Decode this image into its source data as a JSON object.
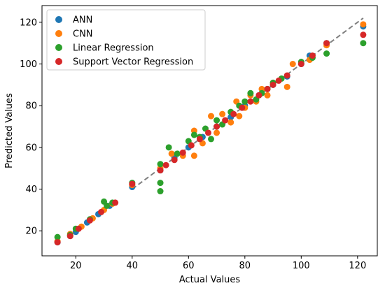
{
  "chart_data": {
    "type": "scatter",
    "title": "",
    "xlabel": "Actual Values",
    "ylabel": "Predicted Values",
    "xlim": [
      8,
      127
    ],
    "ylim": [
      8,
      128
    ],
    "x_ticks": [
      20,
      40,
      60,
      80,
      100,
      120
    ],
    "y_ticks": [
      20,
      40,
      60,
      80,
      100,
      120
    ],
    "grid": false,
    "legend_position": "top-left",
    "series": [
      {
        "name": "ANN",
        "color": "#1f77b4",
        "points": [
          [
            13.5,
            14.5
          ],
          [
            18,
            17.5
          ],
          [
            20,
            19.5
          ],
          [
            24,
            24
          ],
          [
            28,
            28
          ],
          [
            32,
            32
          ],
          [
            40,
            41
          ],
          [
            50,
            49
          ],
          [
            55,
            55
          ],
          [
            60,
            60
          ],
          [
            65,
            65
          ],
          [
            70,
            70
          ],
          [
            75,
            74.5
          ],
          [
            80,
            80
          ],
          [
            85,
            85
          ],
          [
            90,
            90
          ],
          [
            95,
            94
          ],
          [
            100,
            100
          ],
          [
            103,
            104
          ],
          [
            109,
            110
          ],
          [
            122,
            118
          ]
        ]
      },
      {
        "name": "CNN",
        "color": "#ff7f0e",
        "points": [
          [
            13.5,
            15
          ],
          [
            18,
            18.5
          ],
          [
            22,
            22
          ],
          [
            26,
            26
          ],
          [
            30,
            30
          ],
          [
            33,
            33
          ],
          [
            40,
            42
          ],
          [
            50,
            50
          ],
          [
            54,
            57
          ],
          [
            58,
            56
          ],
          [
            62,
            56
          ],
          [
            62,
            68
          ],
          [
            65,
            62
          ],
          [
            68,
            75
          ],
          [
            70,
            67
          ],
          [
            72,
            76
          ],
          [
            75,
            72
          ],
          [
            77,
            82
          ],
          [
            78,
            75
          ],
          [
            80,
            79
          ],
          [
            82,
            85
          ],
          [
            84,
            82
          ],
          [
            86,
            88
          ],
          [
            88,
            85
          ],
          [
            90,
            91
          ],
          [
            95,
            89
          ],
          [
            97,
            100
          ],
          [
            103,
            102
          ],
          [
            109,
            109
          ],
          [
            122,
            119
          ]
        ]
      },
      {
        "name": "Linear Regression",
        "color": "#2ca02c",
        "points": [
          [
            13.5,
            17
          ],
          [
            18,
            18
          ],
          [
            20,
            21
          ],
          [
            25,
            25.5
          ],
          [
            30,
            34
          ],
          [
            31,
            32
          ],
          [
            33,
            33.5
          ],
          [
            40,
            43
          ],
          [
            50,
            39
          ],
          [
            50,
            43
          ],
          [
            50,
            52
          ],
          [
            53,
            60
          ],
          [
            56,
            57
          ],
          [
            60,
            63
          ],
          [
            62,
            66
          ],
          [
            64,
            65
          ],
          [
            66,
            69
          ],
          [
            68,
            64
          ],
          [
            70,
            73
          ],
          [
            72,
            71
          ],
          [
            75,
            77
          ],
          [
            78,
            80
          ],
          [
            80,
            82
          ],
          [
            82,
            86
          ],
          [
            84,
            83
          ],
          [
            86,
            86
          ],
          [
            88,
            88
          ],
          [
            90,
            91
          ],
          [
            93,
            93
          ],
          [
            100,
            101
          ],
          [
            104,
            103
          ],
          [
            109,
            105
          ],
          [
            122,
            110
          ]
        ]
      },
      {
        "name": "Support Vector Regression",
        "color": "#d62728",
        "points": [
          [
            13.5,
            14.5
          ],
          [
            18,
            17.5
          ],
          [
            21,
            21
          ],
          [
            25,
            25
          ],
          [
            29,
            29
          ],
          [
            34,
            33.5
          ],
          [
            40,
            42.5
          ],
          [
            50,
            49
          ],
          [
            52,
            51.5
          ],
          [
            55,
            54
          ],
          [
            58,
            57.5
          ],
          [
            61,
            61
          ],
          [
            64,
            64
          ],
          [
            67,
            67
          ],
          [
            70,
            70
          ],
          [
            73,
            73
          ],
          [
            76,
            76
          ],
          [
            79,
            79
          ],
          [
            82,
            82
          ],
          [
            85,
            85
          ],
          [
            88,
            88
          ],
          [
            90,
            90
          ],
          [
            92,
            92
          ],
          [
            95,
            94.5
          ],
          [
            100,
            100
          ],
          [
            104,
            104
          ],
          [
            109,
            110
          ],
          [
            122,
            114
          ]
        ]
      }
    ],
    "reference_line": {
      "from": [
        40,
        40
      ],
      "to": [
        122,
        122
      ],
      "color": "#808080"
    }
  }
}
